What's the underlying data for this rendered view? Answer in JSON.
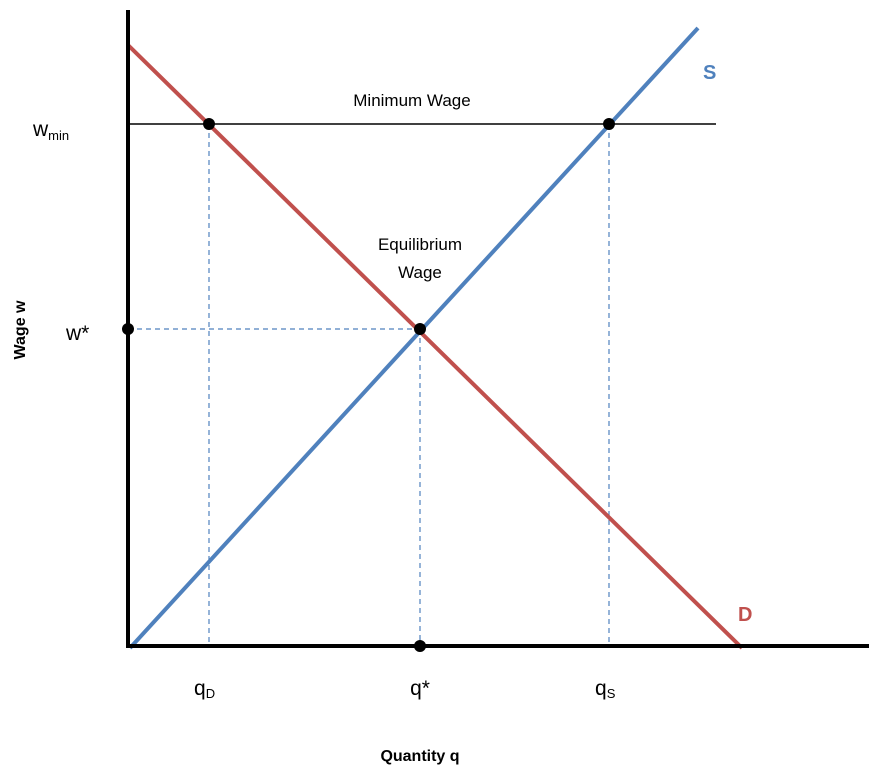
{
  "axes": {
    "y_label": "Wage w",
    "x_label": "Quantity q"
  },
  "curves": {
    "supply": "S",
    "demand": "D"
  },
  "annotations": {
    "minimum_wage": "Minimum Wage",
    "equilibrium": [
      "Equilibrium",
      "Wage"
    ]
  },
  "y_labels": {
    "w_min": {
      "base": "w",
      "sub": "min"
    },
    "w_star": "w*"
  },
  "x_labels": {
    "q_d": {
      "base": "q",
      "sub": "D"
    },
    "q_star": "q*",
    "q_s": {
      "base": "q",
      "sub": "S"
    }
  }
}
